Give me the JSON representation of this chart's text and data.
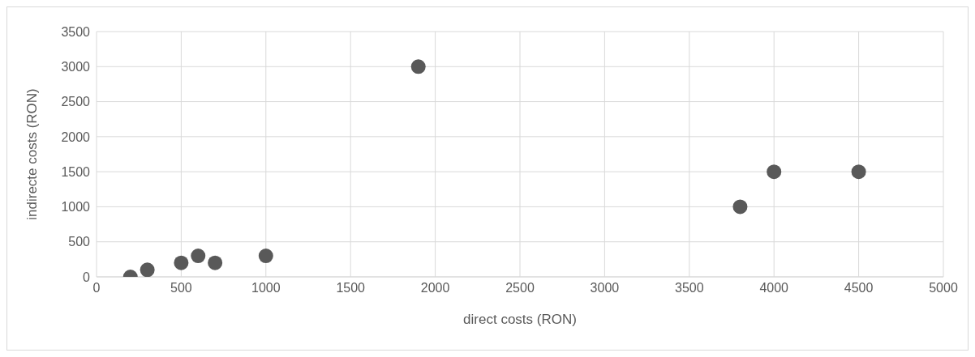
{
  "chart_data": {
    "type": "scatter",
    "xlabel": "direct costs (RON)",
    "ylabel": "indirecte costs (RON)",
    "x": [
      200,
      300,
      500,
      600,
      700,
      1000,
      1900,
      3800,
      4000,
      4500
    ],
    "values": [
      0,
      100,
      200,
      300,
      200,
      300,
      3000,
      1000,
      1500,
      1500
    ],
    "color": "#595959",
    "marker": "circle",
    "xlim": [
      0,
      5000
    ],
    "xticks": [
      0,
      500,
      1000,
      1500,
      2000,
      2500,
      3000,
      3500,
      4000,
      4500,
      5000
    ],
    "ylim": [
      0,
      3500
    ],
    "yticks": [
      0,
      500,
      1000,
      1500,
      2000,
      2500,
      3000,
      3500
    ],
    "grid": true,
    "legend": false
  }
}
